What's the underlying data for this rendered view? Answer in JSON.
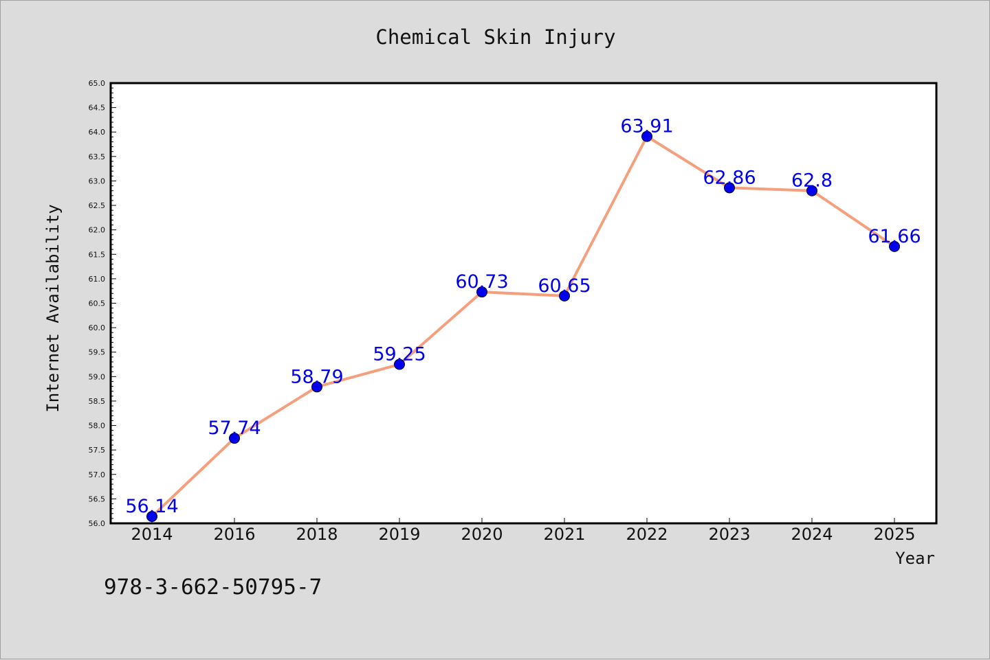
{
  "chart_data": {
    "type": "line",
    "title": "Chemical Skin Injury",
    "xlabel": "Year",
    "ylabel": "Internet Availability",
    "categories": [
      "2014",
      "2016",
      "2018",
      "2019",
      "2020",
      "2021",
      "2022",
      "2023",
      "2024",
      "2025"
    ],
    "series": [
      {
        "values": [
          56.14,
          57.74,
          58.79,
          59.25,
          60.73,
          60.65,
          63.91,
          62.86,
          62.8,
          61.66
        ],
        "line_color": "#f4a07e",
        "marker_color": "#0000ee"
      }
    ],
    "data_labels": [
      "56.14",
      "57.74",
      "58.79",
      "59.25",
      "60.73",
      "60.65",
      "63.91",
      "62.86",
      "62.8",
      "61.66"
    ],
    "ylim": [
      56.0,
      65.0
    ],
    "yticks": [
      "56.0",
      "56.5",
      "57.0",
      "57.5",
      "58.0",
      "58.5",
      "59.0",
      "59.5",
      "60.0",
      "60.5",
      "61.0",
      "61.5",
      "62.0",
      "62.5",
      "63.0",
      "63.5",
      "64.0",
      "64.5",
      "65.0"
    ],
    "grid": false,
    "label_color": "#0000ee",
    "plot_background": "#ffffff"
  },
  "footer": {
    "code": "978-3-662-50795-7"
  }
}
